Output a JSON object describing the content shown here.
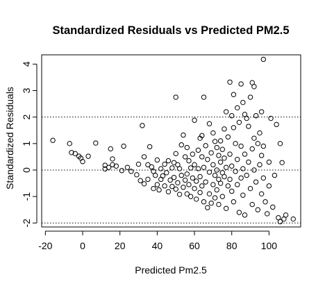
{
  "chart_data": {
    "type": "scatter",
    "title": "Standardized Residuals vs Predicted PM2.5",
    "xlabel": "Predicted Pm2.5",
    "ylabel": "Standardized Residuals",
    "xlim": [
      -22,
      117
    ],
    "ylim": [
      -2.15,
      4.35
    ],
    "xticks": [
      -20,
      0,
      20,
      40,
      60,
      80,
      100
    ],
    "xtick_labels": [
      "-20",
      "0",
      "20",
      "40",
      "60",
      "80",
      "100"
    ],
    "yticks": [
      -2,
      -1,
      0,
      1,
      2,
      3,
      4
    ],
    "ytick_labels": [
      "-2",
      "-1",
      "0",
      "1",
      "2",
      "3",
      "4"
    ],
    "reference_lines": [
      -2,
      0,
      2
    ],
    "grid": false,
    "legend": "none",
    "marker": "open-circle",
    "colors": {
      "points": "#000000",
      "background": "#ffffff"
    },
    "points": [
      [
        -16,
        1.12
      ],
      [
        -7,
        1.0
      ],
      [
        -6,
        0.66
      ],
      [
        -4,
        0.62
      ],
      [
        -2,
        0.52
      ],
      [
        -1,
        0.45
      ],
      [
        0,
        0.32
      ],
      [
        3,
        0.52
      ],
      [
        7,
        1.02
      ],
      [
        12,
        0.04
      ],
      [
        12,
        0.18
      ],
      [
        14,
        0.1
      ],
      [
        15,
        0.8
      ],
      [
        16,
        0.42
      ],
      [
        16,
        0.2
      ],
      [
        18,
        0.15
      ],
      [
        21,
        -0.02
      ],
      [
        22,
        0.9
      ],
      [
        24,
        0.1
      ],
      [
        26,
        -0.05
      ],
      [
        29,
        -0.18
      ],
      [
        30,
        0.22
      ],
      [
        31,
        -0.4
      ],
      [
        32,
        1.68
      ],
      [
        33,
        -0.52
      ],
      [
        33,
        0.5
      ],
      [
        35,
        0.2
      ],
      [
        35,
        -0.35
      ],
      [
        36,
        0.88
      ],
      [
        37,
        0.12
      ],
      [
        38,
        -0.05
      ],
      [
        38,
        -0.7
      ],
      [
        39,
        -0.2
      ],
      [
        40,
        0.38
      ],
      [
        40,
        -0.55
      ],
      [
        41,
        -0.75
      ],
      [
        42,
        0.05
      ],
      [
        42,
        -0.35
      ],
      [
        43,
        -0.22
      ],
      [
        44,
        0.22
      ],
      [
        44,
        -0.6
      ],
      [
        45,
        -0.1
      ],
      [
        46,
        0.35
      ],
      [
        46,
        -0.82
      ],
      [
        47,
        -0.38
      ],
      [
        48,
        0.08
      ],
      [
        48,
        -0.62
      ],
      [
        49,
        0.28
      ],
      [
        49,
        -0.28
      ],
      [
        50,
        2.75
      ],
      [
        50,
        0.62
      ],
      [
        50,
        -0.72
      ],
      [
        51,
        0.2
      ],
      [
        51,
        -0.48
      ],
      [
        52,
        -0.92
      ],
      [
        52,
        0.05
      ],
      [
        53,
        0.95
      ],
      [
        53,
        -0.2
      ],
      [
        54,
        1.32
      ],
      [
        54,
        -0.65
      ],
      [
        55,
        0.5
      ],
      [
        55,
        -0.38
      ],
      [
        56,
        0.85
      ],
      [
        56,
        -0.15
      ],
      [
        56,
        -0.9
      ],
      [
        57,
        0.35
      ],
      [
        57,
        -0.55
      ],
      [
        58,
        -1.0
      ],
      [
        58,
        0.08
      ],
      [
        59,
        -0.3
      ],
      [
        59,
        0.6
      ],
      [
        60,
        1.88
      ],
      [
        60,
        -0.7
      ],
      [
        60,
        0.2
      ],
      [
        61,
        -1.1
      ],
      [
        61,
        -0.42
      ],
      [
        62,
        0.75
      ],
      [
        62,
        0.05
      ],
      [
        63,
        1.2
      ],
      [
        63,
        -0.25
      ],
      [
        63,
        -0.85
      ],
      [
        64,
        1.3
      ],
      [
        64,
        0.5
      ],
      [
        64,
        -0.6
      ],
      [
        65,
        2.75
      ],
      [
        65,
        0.1
      ],
      [
        65,
        -1.2
      ],
      [
        66,
        0.92
      ],
      [
        66,
        -0.45
      ],
      [
        67,
        -1.42
      ],
      [
        67,
        0.4
      ],
      [
        68,
        1.75
      ],
      [
        68,
        -0.08
      ],
      [
        68,
        -0.9
      ],
      [
        69,
        0.65
      ],
      [
        69,
        -1.25
      ],
      [
        70,
        1.4
      ],
      [
        70,
        0.2
      ],
      [
        70,
        -0.55
      ],
      [
        71,
        1.08
      ],
      [
        71,
        -0.2
      ],
      [
        71,
        -1.05
      ],
      [
        72,
        0.85
      ],
      [
        72,
        0.0
      ],
      [
        72,
        -0.75
      ],
      [
        73,
        0.55
      ],
      [
        73,
        -0.35
      ],
      [
        73,
        -1.3
      ],
      [
        74,
        1.1
      ],
      [
        74,
        0.3
      ],
      [
        74,
        -0.5
      ],
      [
        75,
        0.78
      ],
      [
        75,
        -0.1
      ],
      [
        75,
        -1.0
      ],
      [
        76,
        1.55
      ],
      [
        76,
        0.45
      ],
      [
        76,
        -0.25
      ],
      [
        77,
        2.2
      ],
      [
        77,
        0.1
      ],
      [
        77,
        -1.45
      ],
      [
        78,
        1.25
      ],
      [
        78,
        -0.6
      ],
      [
        79,
        3.32
      ],
      [
        79,
        0.6
      ],
      [
        79,
        -0.35
      ],
      [
        80,
        2.05
      ],
      [
        80,
        0.15
      ],
      [
        80,
        -0.8
      ],
      [
        81,
        1.6
      ],
      [
        81,
        2.85
      ],
      [
        81,
        -1.2
      ],
      [
        82,
        1.0
      ],
      [
        82,
        -0.05
      ],
      [
        83,
        2.35
      ],
      [
        83,
        0.4
      ],
      [
        83,
        -0.55
      ],
      [
        84,
        1.8
      ],
      [
        84,
        -1.6
      ],
      [
        85,
        3.25
      ],
      [
        85,
        0.9
      ],
      [
        85,
        -0.3
      ],
      [
        86,
        2.55
      ],
      [
        86,
        0.05
      ],
      [
        86,
        -0.95
      ],
      [
        87,
        2.1
      ],
      [
        87,
        0.6
      ],
      [
        87,
        -1.7
      ],
      [
        88,
        1.95
      ],
      [
        88,
        -0.2
      ],
      [
        89,
        1.65
      ],
      [
        89,
        0.3
      ],
      [
        90,
        2.75
      ],
      [
        90,
        -0.7
      ],
      [
        91,
        3.3
      ],
      [
        91,
        0.8
      ],
      [
        91,
        -1.3
      ],
      [
        92,
        3.15
      ],
      [
        92,
        1.2
      ],
      [
        92,
        0.0
      ],
      [
        93,
        2.05
      ],
      [
        93,
        -0.45
      ],
      [
        94,
        1.0
      ],
      [
        94,
        -1.5
      ],
      [
        95,
        1.4
      ],
      [
        95,
        0.2
      ],
      [
        96,
        2.2
      ],
      [
        96,
        0.55
      ],
      [
        96,
        -0.9
      ],
      [
        97,
        4.18
      ],
      [
        97,
        0.9
      ],
      [
        97,
        -0.3
      ],
      [
        98,
        -1.2
      ],
      [
        99,
        -1.65
      ],
      [
        100,
        0.3
      ],
      [
        100,
        -0.6
      ],
      [
        101,
        1.95
      ],
      [
        102,
        -1.4
      ],
      [
        103,
        -0.2
      ],
      [
        104,
        1.72
      ],
      [
        105,
        -1.8
      ],
      [
        106,
        1.0
      ],
      [
        106,
        -1.95
      ],
      [
        107,
        0.28
      ],
      [
        108,
        -1.85
      ],
      [
        109,
        -1.7
      ],
      [
        113,
        -1.85
      ]
    ]
  }
}
